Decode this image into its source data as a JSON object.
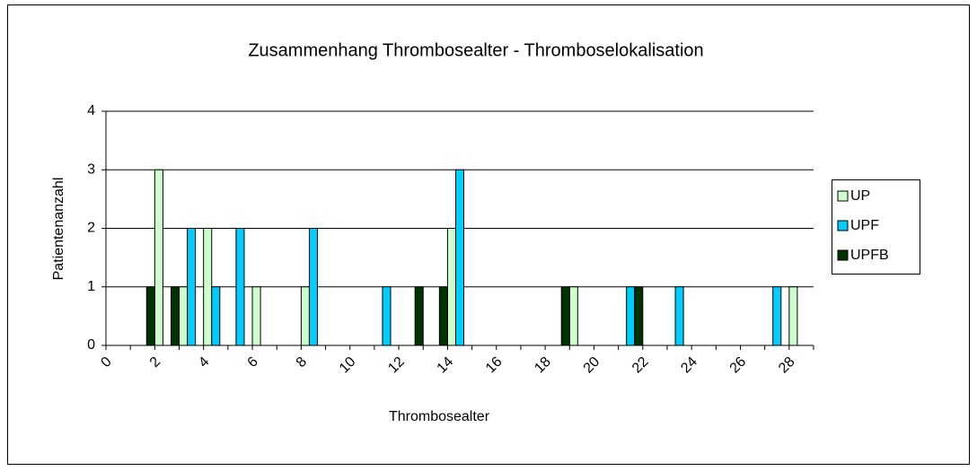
{
  "chart_data": {
    "type": "bar",
    "title": "Zusammenhang Thrombosealter - Thromboselokalisation",
    "x_label": "Thrombosealter",
    "y_label": "Patientenanzahl",
    "categories": [
      0,
      null,
      2,
      null,
      4,
      null,
      6,
      null,
      8,
      null,
      10,
      null,
      12,
      null,
      14,
      null,
      16,
      null,
      18,
      null,
      20,
      null,
      22,
      null,
      24,
      null,
      26,
      null,
      28
    ],
    "series": [
      {
        "name": "UP",
        "color": "#ccffcc",
        "values": [
          0,
          0,
          3,
          1,
          2,
          0,
          1,
          0,
          1,
          0,
          0,
          0,
          0,
          0,
          2,
          0,
          0,
          0,
          0,
          1,
          0,
          0,
          0,
          0,
          0,
          0,
          0,
          0,
          1
        ]
      },
      {
        "name": "UPF",
        "color": "#00ccff",
        "values": [
          0,
          0,
          0,
          2,
          1,
          2,
          0,
          0,
          2,
          0,
          0,
          1,
          0,
          0,
          3,
          0,
          0,
          0,
          0,
          0,
          0,
          1,
          0,
          1,
          0,
          0,
          0,
          1,
          0
        ]
      },
      {
        "name": "UPFB",
        "color": "#003300",
        "values": [
          0,
          1,
          1,
          0,
          0,
          0,
          0,
          0,
          0,
          0,
          0,
          0,
          1,
          1,
          0,
          0,
          0,
          0,
          1,
          0,
          0,
          1,
          0,
          0,
          0,
          0,
          0,
          0,
          0
        ]
      }
    ],
    "ylim": [
      0,
      4
    ],
    "yticks": [
      0,
      1,
      2,
      3,
      4
    ],
    "grid": true,
    "legend": "right"
  }
}
